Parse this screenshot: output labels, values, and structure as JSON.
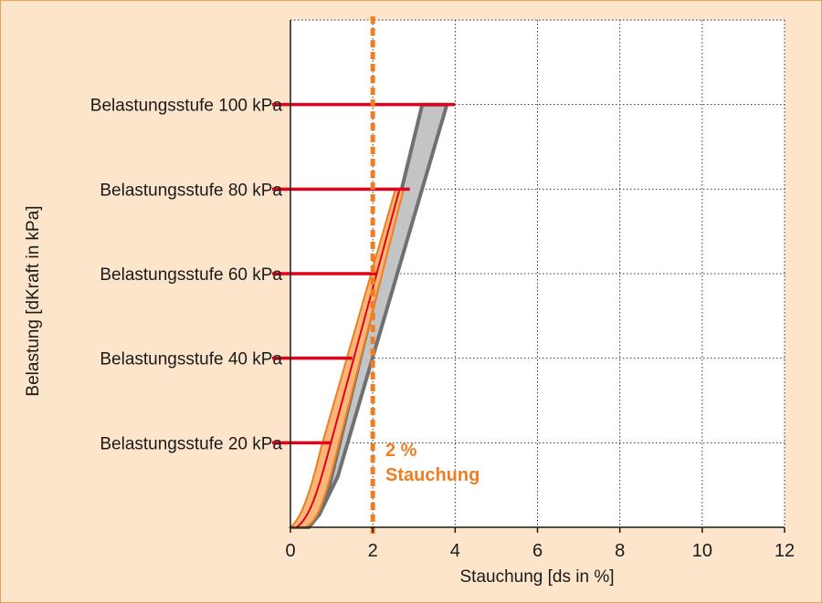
{
  "chart_data": {
    "type": "line",
    "xlabel": "Stauchung [ds in %]",
    "ylabel": "Belastung [dKraft in kPa]",
    "xlim": [
      0,
      12
    ],
    "ylim": [
      0,
      120
    ],
    "xticks": [
      "0",
      "2",
      "4",
      "6",
      "8",
      "10",
      "12"
    ],
    "grid": true,
    "categories": [
      "Belastungsstufe 20 kPa",
      "Belastungsstufe 40 kPa",
      "Belastungsstufe 60 kPa",
      "Belastungsstufe 80 kPa",
      "Belastungsstufe 100 kPa"
    ],
    "category_y_values": [
      20,
      40,
      60,
      80,
      100
    ],
    "category_bar_x_end": [
      1.0,
      1.5,
      2.1,
      2.9,
      4.0
    ],
    "band_gray": {
      "left": [
        [
          0.5,
          0
        ],
        [
          3.2,
          100
        ]
      ],
      "right": [
        [
          0.8,
          0
        ],
        [
          3.8,
          100
        ]
      ]
    },
    "band_orange": {
      "left": [
        [
          0.05,
          0
        ],
        [
          2.55,
          80
        ]
      ],
      "right": [
        [
          0.3,
          0
        ],
        [
          2.75,
          80
        ]
      ],
      "center": [
        [
          0.15,
          0
        ],
        [
          2.65,
          80
        ]
      ]
    },
    "reference_line": {
      "x": 2,
      "label_line1": "2 %",
      "label_line2": "Stauchung"
    },
    "colors": {
      "background": "#fde5cc",
      "gray_fill": "#c3c4c6",
      "gray_stroke": "#6f7072",
      "orange_fill": "#f9b77a",
      "orange_stroke": "#ef7d22",
      "red": "#e3001b",
      "reference": "#ef7d22"
    }
  }
}
